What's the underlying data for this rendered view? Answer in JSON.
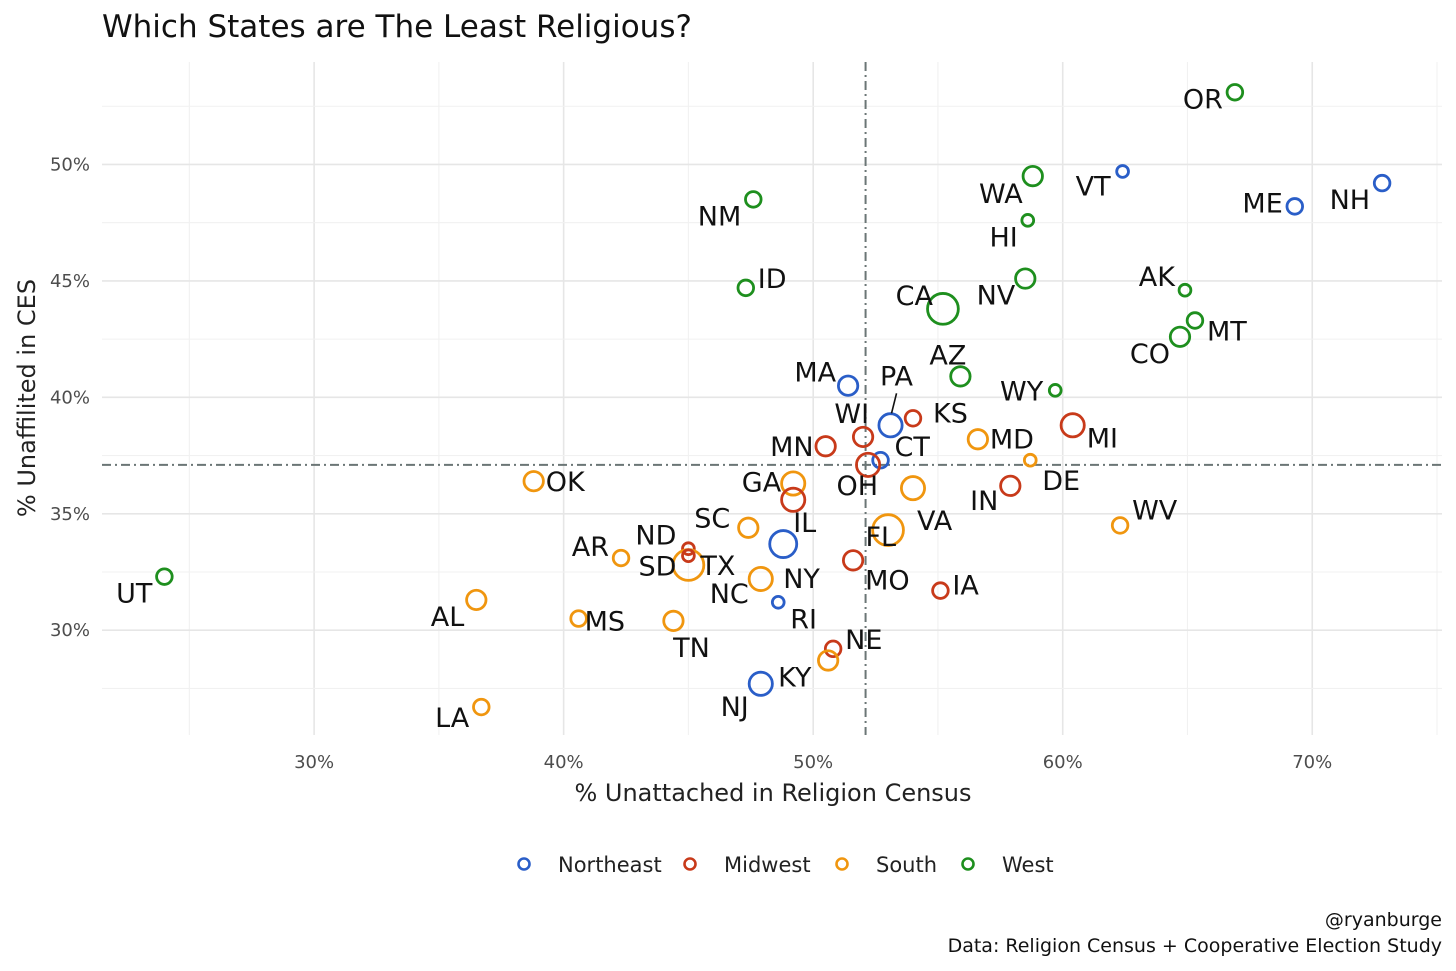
{
  "chart_data": {
    "type": "scatter",
    "title": "Which States are The Least Religious?",
    "xlabel": "% Unattached in Religion Census",
    "ylabel": "% Unaffilited in CES",
    "xlim": [
      21.5,
      75.2
    ],
    "ylim": [
      25.5,
      54.4
    ],
    "x_ticks": [
      30,
      40,
      50,
      60,
      70
    ],
    "x_tick_labels": [
      "30%",
      "40%",
      "50%",
      "60%",
      "70%"
    ],
    "y_ticks": [
      30,
      35,
      40,
      45,
      50
    ],
    "y_tick_labels": [
      "30%",
      "35%",
      "40%",
      "45%",
      "50%"
    ],
    "grid": true,
    "reference_lines": {
      "x": 52.1,
      "y": 37.1
    },
    "legend_position": "bottom",
    "colors": {
      "Northeast": "#2a5ec8",
      "Midwest": "#c83a1a",
      "South": "#f0960f",
      "West": "#1e8f1e"
    },
    "legend": [
      "Northeast",
      "Midwest",
      "South",
      "West"
    ],
    "points": [
      {
        "label": "OR",
        "region": "West",
        "x": 66.9,
        "y": 53.1,
        "size": 2
      },
      {
        "label": "VT",
        "region": "Northeast",
        "x": 62.4,
        "y": 49.7,
        "size": 1
      },
      {
        "label": "NH",
        "region": "Northeast",
        "x": 72.8,
        "y": 49.2,
        "size": 2
      },
      {
        "label": "ME",
        "region": "Northeast",
        "x": 69.3,
        "y": 48.2,
        "size": 2
      },
      {
        "label": "WA",
        "region": "West",
        "x": 58.8,
        "y": 49.5,
        "size": 3
      },
      {
        "label": "HI",
        "region": "West",
        "x": 58.6,
        "y": 47.6,
        "size": 1
      },
      {
        "label": "NM",
        "region": "West",
        "x": 47.6,
        "y": 48.5,
        "size": 2
      },
      {
        "label": "ID",
        "region": "West",
        "x": 47.3,
        "y": 44.7,
        "size": 2
      },
      {
        "label": "CA",
        "region": "West",
        "x": 55.2,
        "y": 43.8,
        "size": 6
      },
      {
        "label": "NV",
        "region": "West",
        "x": 58.5,
        "y": 45.1,
        "size": 3
      },
      {
        "label": "AK",
        "region": "West",
        "x": 64.9,
        "y": 44.6,
        "size": 1
      },
      {
        "label": "MT",
        "region": "West",
        "x": 65.3,
        "y": 43.3,
        "size": 2
      },
      {
        "label": "CO",
        "region": "West",
        "x": 64.7,
        "y": 42.6,
        "size": 3
      },
      {
        "label": "AZ",
        "region": "West",
        "x": 55.9,
        "y": 40.9,
        "size": 3
      },
      {
        "label": "WY",
        "region": "West",
        "x": 59.7,
        "y": 40.3,
        "size": 1
      },
      {
        "label": "MA",
        "region": "Northeast",
        "x": 51.4,
        "y": 40.5,
        "size": 3
      },
      {
        "label": "PA",
        "region": "Northeast",
        "x": 53.1,
        "y": 38.8,
        "size": 4
      },
      {
        "label": "KS",
        "region": "Midwest",
        "x": 54.0,
        "y": 39.1,
        "size": 2
      },
      {
        "label": "WI",
        "region": "Midwest",
        "x": 52.0,
        "y": 38.3,
        "size": 3
      },
      {
        "label": "MN",
        "region": "Midwest",
        "x": 50.5,
        "y": 37.9,
        "size": 3
      },
      {
        "label": "CT",
        "region": "Northeast",
        "x": 52.7,
        "y": 37.3,
        "size": 2
      },
      {
        "label": "MD",
        "region": "South",
        "x": 56.6,
        "y": 38.2,
        "size": 3
      },
      {
        "label": "MI",
        "region": "Midwest",
        "x": 60.4,
        "y": 38.8,
        "size": 4
      },
      {
        "label": "OH",
        "region": "Midwest",
        "x": 52.2,
        "y": 37.1,
        "size": 4
      },
      {
        "label": "DE",
        "region": "South",
        "x": 58.7,
        "y": 37.3,
        "size": 1
      },
      {
        "label": "OK",
        "region": "South",
        "x": 38.8,
        "y": 36.4,
        "size": 3
      },
      {
        "label": "GA",
        "region": "South",
        "x": 49.2,
        "y": 36.3,
        "size": 4
      },
      {
        "label": "IL",
        "region": "Midwest",
        "x": 49.2,
        "y": 35.6,
        "size": 4
      },
      {
        "label": "VA",
        "region": "South",
        "x": 54.0,
        "y": 36.1,
        "size": 4
      },
      {
        "label": "IN",
        "region": "Midwest",
        "x": 57.9,
        "y": 36.2,
        "size": 3
      },
      {
        "label": "WV",
        "region": "South",
        "x": 62.3,
        "y": 34.5,
        "size": 2
      },
      {
        "label": "SC",
        "region": "South",
        "x": 47.4,
        "y": 34.4,
        "size": 3
      },
      {
        "label": "NY",
        "region": "Northeast",
        "x": 48.8,
        "y": 33.7,
        "size": 5
      },
      {
        "label": "FL",
        "region": "South",
        "x": 53.0,
        "y": 34.3,
        "size": 6
      },
      {
        "label": "ND",
        "region": "Midwest",
        "x": 45.0,
        "y": 33.5,
        "size": 1
      },
      {
        "label": "AR",
        "region": "South",
        "x": 42.3,
        "y": 33.1,
        "size": 2
      },
      {
        "label": "TX",
        "region": "South",
        "x": 45.0,
        "y": 32.8,
        "size": 6
      },
      {
        "label": "MO",
        "region": "Midwest",
        "x": 51.6,
        "y": 33.0,
        "size": 3
      },
      {
        "label": "IA",
        "region": "Midwest",
        "x": 55.1,
        "y": 31.7,
        "size": 2
      },
      {
        "label": "UT",
        "region": "West",
        "x": 24.0,
        "y": 32.3,
        "size": 2
      },
      {
        "label": "AL",
        "region": "South",
        "x": 36.5,
        "y": 31.3,
        "size": 3
      },
      {
        "label": "MS",
        "region": "South",
        "x": 40.6,
        "y": 30.5,
        "size": 2
      },
      {
        "label": "SD",
        "region": "Midwest",
        "x": 45.0,
        "y": 33.2,
        "size": 1
      },
      {
        "label": "TN",
        "region": "South",
        "x": 44.4,
        "y": 30.4,
        "size": 3
      },
      {
        "label": "NC",
        "region": "South",
        "x": 47.9,
        "y": 32.2,
        "size": 4
      },
      {
        "label": "RI",
        "region": "Northeast",
        "x": 48.6,
        "y": 31.2,
        "size": 1
      },
      {
        "label": "NE",
        "region": "Midwest",
        "x": 50.8,
        "y": 29.2,
        "size": 2
      },
      {
        "label": "KY",
        "region": "South",
        "x": 50.6,
        "y": 28.7,
        "size": 3
      },
      {
        "label": "NJ",
        "region": "Northeast",
        "x": 47.9,
        "y": 27.7,
        "size": 4
      },
      {
        "label": "LA",
        "region": "South",
        "x": 36.7,
        "y": 26.7,
        "size": 2
      }
    ]
  },
  "caption": {
    "author": "@ryanburge",
    "source": "Data: Religion Census + Cooperative Election Study"
  }
}
